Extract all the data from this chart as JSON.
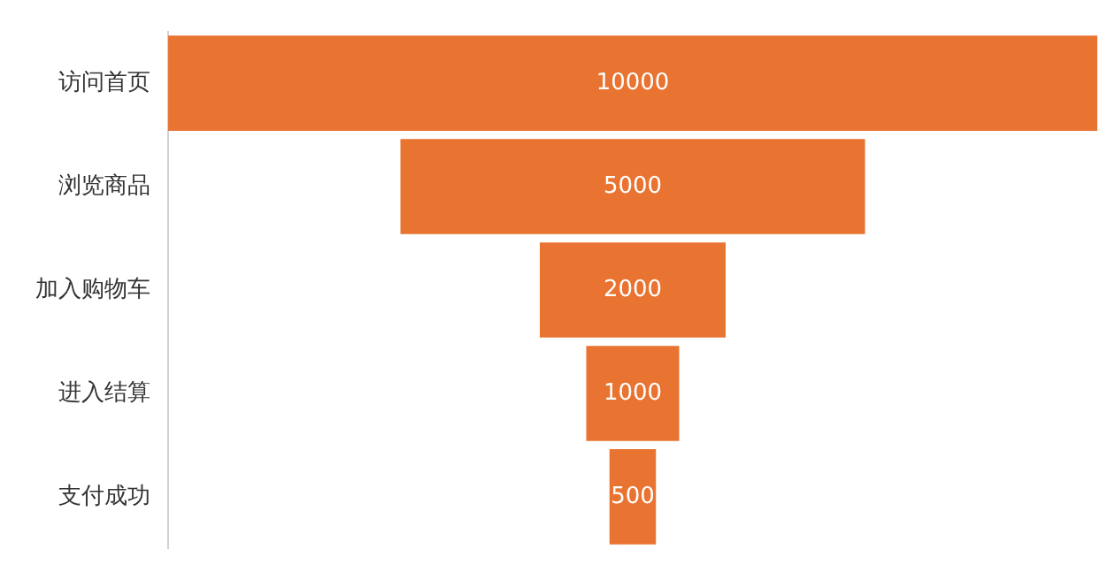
{
  "chart_data": {
    "type": "other",
    "categories": [
      "访问首页",
      "浏览商品",
      "加入购物车",
      "进入结算",
      "支付成功"
    ],
    "values": [
      10000,
      5000,
      2000,
      1000,
      500
    ],
    "color": "#e97331",
    "data_labels": true
  }
}
